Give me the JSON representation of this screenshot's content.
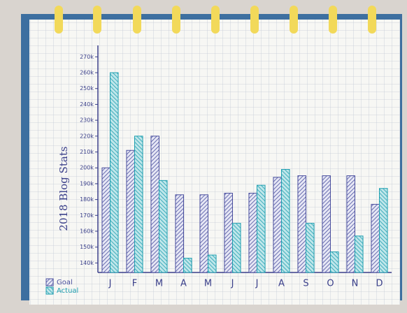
{
  "chart_data": {
    "type": "bar",
    "title": "2018 Blog Stats",
    "categories": [
      "J",
      "F",
      "M",
      "A",
      "M",
      "J",
      "J",
      "A",
      "S",
      "O",
      "N",
      "D"
    ],
    "series": [
      {
        "name": "Goal",
        "color": "#4a4f9e",
        "values": [
          200000,
          211000,
          220000,
          183000,
          183000,
          184000,
          184000,
          194000,
          195000,
          195000,
          195000,
          177000
        ]
      },
      {
        "name": "Actual",
        "color": "#1e9fb0",
        "values": [
          260000,
          220000,
          192000,
          143000,
          145000,
          165000,
          189000,
          199000,
          165000,
          147000,
          157000,
          187000
        ]
      }
    ],
    "ylim": [
      134000,
      275000
    ],
    "yticks": [
      {
        "value": 140000,
        "label": "140k"
      },
      {
        "value": 150000,
        "label": "150k"
      },
      {
        "value": 160000,
        "label": "160k"
      },
      {
        "value": 170000,
        "label": "170k"
      },
      {
        "value": 180000,
        "label": "180k"
      },
      {
        "value": 190000,
        "label": "190k"
      },
      {
        "value": 200000,
        "label": "200k"
      },
      {
        "value": 210000,
        "label": "210k"
      },
      {
        "value": 220000,
        "label": "220k"
      },
      {
        "value": 230000,
        "label": "230k"
      },
      {
        "value": 240000,
        "label": "240k"
      },
      {
        "value": 250000,
        "label": "250k"
      },
      {
        "value": 260000,
        "label": "260k"
      },
      {
        "value": 270000,
        "label": "270k"
      }
    ],
    "legend": "bottom-left"
  }
}
